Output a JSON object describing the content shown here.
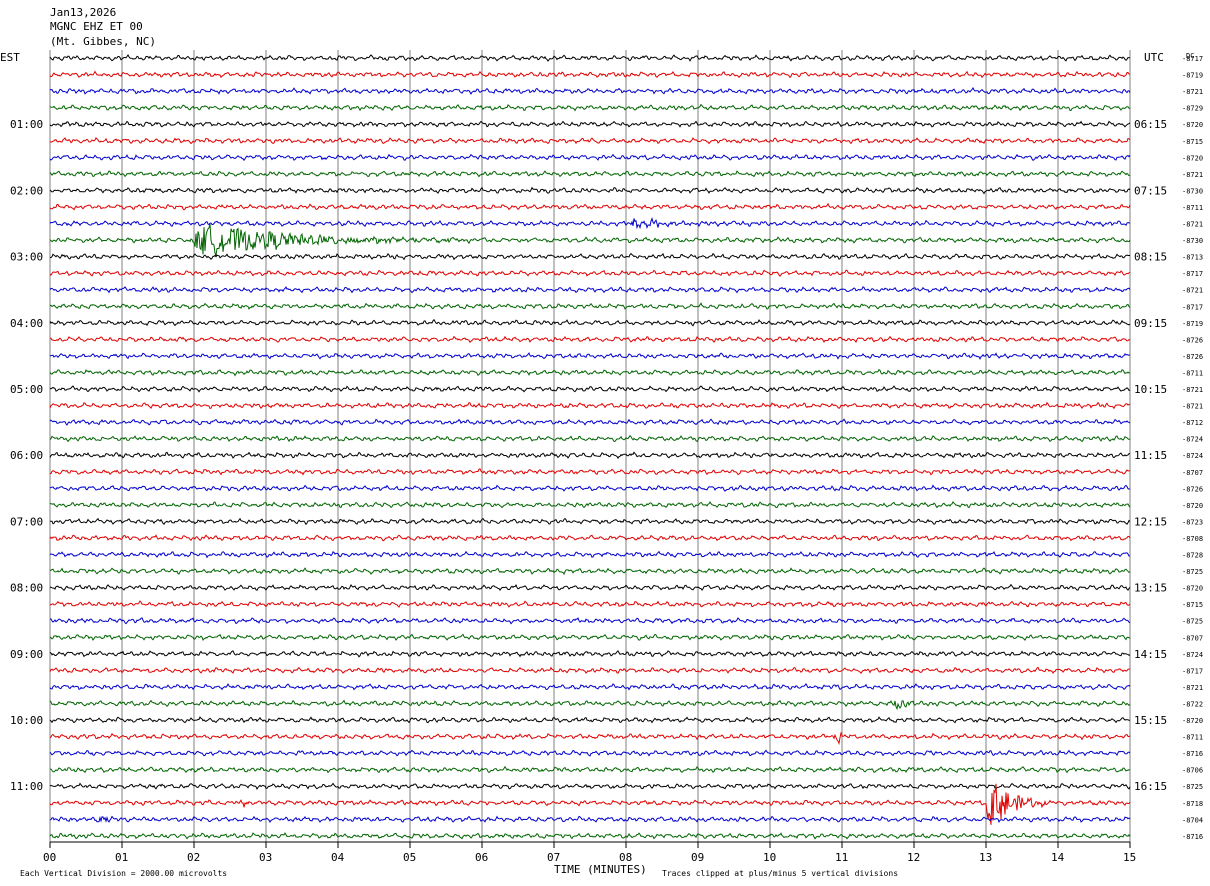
{
  "header": {
    "date": "Jan13,2026",
    "channel": "MGNC EHZ ET 00",
    "location": "(Mt. Gibbes, NC)"
  },
  "left_tz": "EST",
  "right_tz": "UTC",
  "dc_header": "DC",
  "footer": {
    "scale_note": "Each Vertical Division = 2000.00 microvolts",
    "xlabel": "TIME (MINUTES)",
    "clip_note": "Traces clipped at plus/minus 5 vertical divisions"
  },
  "colors": {
    "cycle": [
      "#000000",
      "#e00000",
      "#0000cc",
      "#006400"
    ],
    "grid": "#808080"
  },
  "chart_data": {
    "type": "line",
    "xlim": [
      0,
      15
    ],
    "x_ticks": [
      "00",
      "01",
      "02",
      "03",
      "04",
      "05",
      "06",
      "07",
      "08",
      "09",
      "10",
      "11",
      "12",
      "13",
      "14",
      "15"
    ],
    "row_minutes": 15,
    "rows": 48,
    "grid": true,
    "hour_labels_est": [
      "01:00",
      "02:00",
      "03:00",
      "04:00",
      "05:00",
      "06:00",
      "07:00",
      "08:00",
      "09:00",
      "10:00",
      "11:00"
    ],
    "hour_labels_utc": [
      "06:15",
      "07:15",
      "08:15",
      "09:15",
      "10:15",
      "11:15",
      "12:15",
      "13:15",
      "14:15",
      "15:15",
      "16:15"
    ],
    "dc_offsets": [
      "-8717",
      "-8719",
      "-8721",
      "-8729",
      "-8720",
      "-8715",
      "-8720",
      "-8721",
      "-8730",
      "-8711",
      "-8721",
      "-8730",
      "-8713",
      "-8717",
      "-8721",
      "-8717",
      "-8719",
      "-8726",
      "-8726",
      "-8711",
      "-8721",
      "-8721",
      "-8712",
      "-8724",
      "-8724",
      "-8707",
      "-8726",
      "-8720",
      "-8723",
      "-8708",
      "-8728",
      "-8725",
      "-8720",
      "-8715",
      "-8725",
      "-8707",
      "-8724",
      "-8717",
      "-8721",
      "-8722",
      "-8720",
      "-8711",
      "-8716",
      "-8706",
      "-8725",
      "-8718",
      "-8704",
      "-8716"
    ],
    "events": [
      {
        "row": 11,
        "start_min": 1.9,
        "peak_min": 2.15,
        "end_min": 5.9,
        "amplitude_div": 2.6
      },
      {
        "row": 10,
        "start_min": 8.05,
        "peak_min": 8.1,
        "end_min": 9.0,
        "amplitude_div": 1.1
      },
      {
        "row": 39,
        "start_min": 11.65,
        "peak_min": 11.8,
        "end_min": 12.05,
        "amplitude_div": 1.0
      },
      {
        "row": 41,
        "start_min": 10.85,
        "peak_min": 10.95,
        "end_min": 11.15,
        "amplitude_div": 0.9
      },
      {
        "row": 45,
        "start_min": 2.55,
        "peak_min": 2.65,
        "end_min": 2.85,
        "amplitude_div": 0.8
      },
      {
        "row": 45,
        "start_min": 13.0,
        "peak_min": 13.05,
        "end_min": 13.9,
        "amplitude_div": 5.0
      },
      {
        "row": 46,
        "start_min": 0.6,
        "peak_min": 0.7,
        "end_min": 0.95,
        "amplitude_div": 0.6
      }
    ]
  }
}
